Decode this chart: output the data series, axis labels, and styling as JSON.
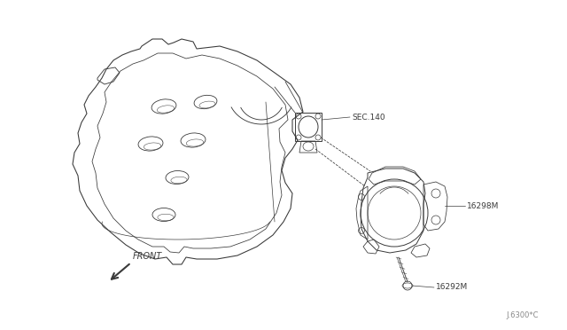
{
  "bg_color": "#ffffff",
  "line_color": "#3a3a3a",
  "text_color": "#3a3a3a",
  "label_sec140": "SEC.140",
  "label_16298m": "16298M",
  "label_16292m": "16292M",
  "label_front": "FRONT",
  "label_docnum": "J.6300*C",
  "fig_width": 6.4,
  "fig_height": 3.72,
  "dpi": 100
}
